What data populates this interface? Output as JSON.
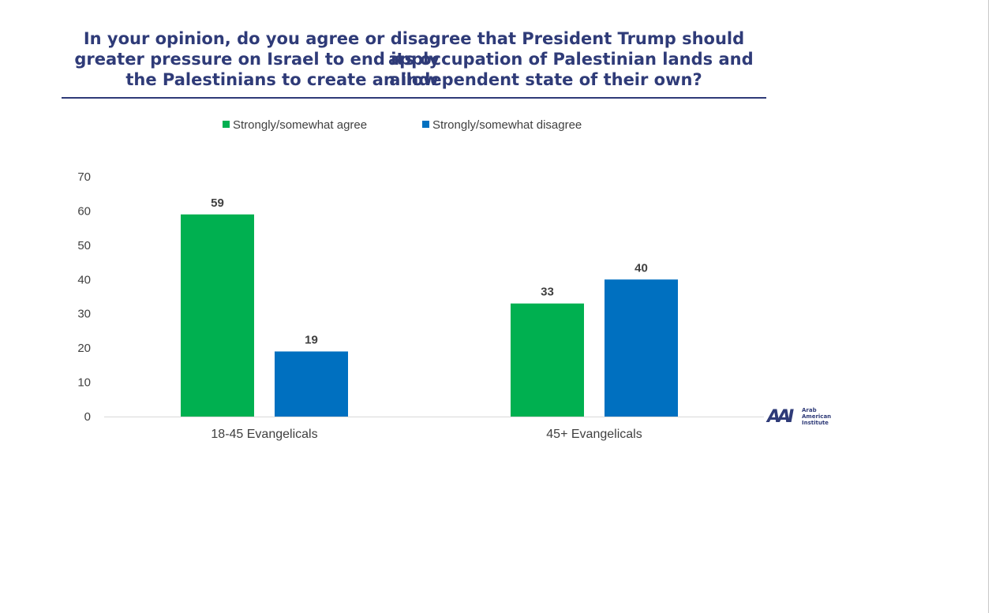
{
  "chart_data": {
    "type": "bar",
    "title_lines": [
      "In your opinion, do you agree or disagree that President Trump should apply",
      "greater pressure on Israel to end its occupation of Palestinian lands and allow",
      "the Palestinians to create an independent state of their own?"
    ],
    "categories": [
      "18-45 Evangelicals",
      "45+ Evangelicals"
    ],
    "series": [
      {
        "name": "Strongly/somewhat agree",
        "values": [
          59,
          33
        ],
        "color": "#00b050"
      },
      {
        "name": "Strongly/somewhat disagree",
        "values": [
          19,
          40
        ],
        "color": "#0070c0"
      }
    ],
    "ylim": [
      0,
      70
    ],
    "yticks": [
      0,
      10,
      20,
      30,
      40,
      50,
      60,
      70
    ],
    "xlabel": "",
    "ylabel": "",
    "legend_position": "top-center"
  },
  "logo": {
    "mark": "AAI",
    "lines": [
      "Arab",
      "American",
      "Institute"
    ]
  },
  "colors": {
    "title": "#2f3b78",
    "rule": "#2f3b78",
    "axis": "#d9d9d9",
    "text": "#404040"
  }
}
